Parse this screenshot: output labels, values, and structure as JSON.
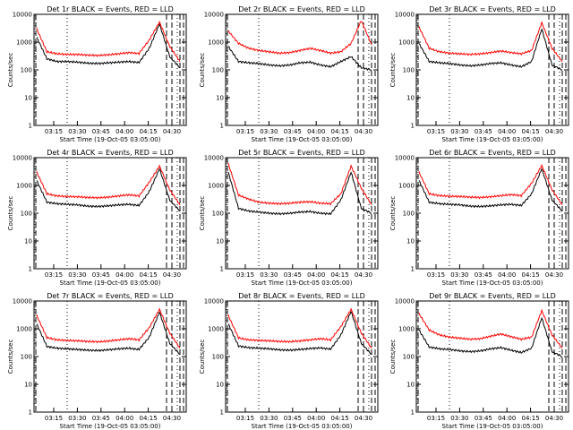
{
  "figure": {
    "x_tick_labels": [
      "03:15",
      "03:30",
      "03:45",
      "04:00",
      "04:15",
      "04:30"
    ],
    "y_tick_labels": [
      "1",
      "10",
      "100",
      "1000",
      "10000"
    ]
  },
  "chart_data": [
    {
      "type": "line",
      "title": "Det 1r BLACK = Events, RED = LLD",
      "xlabel": "Start Time (19-Oct-05 03:05:00)",
      "ylabel": "Counts/sec",
      "y_scale": "log",
      "ylim": [
        1,
        10000
      ],
      "x_ticks": [
        "03:15",
        "03:30",
        "03:45",
        "04:00",
        "04:15",
        "04:30"
      ],
      "series": [
        {
          "name": "Events",
          "color": "#000000",
          "values": [
            1500,
            250,
            200,
            200,
            190,
            175,
            170,
            180,
            190,
            200,
            185,
            600,
            4500,
            300,
            120
          ]
        },
        {
          "name": "LLD",
          "color": "#ff0000",
          "values": [
            3000,
            450,
            380,
            360,
            360,
            340,
            330,
            350,
            380,
            420,
            390,
            1200,
            5200,
            700,
            200
          ]
        }
      ]
    },
    {
      "type": "line",
      "title": "Det 2r BLACK = Events, RED = LLD",
      "xlabel": "Start Time (19-Oct-05 03:05:00)",
      "ylabel": "Counts/sec",
      "y_scale": "log",
      "ylim": [
        1,
        10000
      ],
      "x_ticks": [
        "03:15",
        "03:30",
        "03:45",
        "04:00",
        "04:15",
        "04:30"
      ],
      "series": [
        {
          "name": "Events",
          "color": "#000000",
          "values": [
            700,
            200,
            180,
            170,
            150,
            140,
            150,
            180,
            190,
            150,
            130,
            200,
            300,
            120,
            100
          ]
        },
        {
          "name": "LLD",
          "color": "#ff0000",
          "values": [
            2500,
            900,
            600,
            500,
            450,
            400,
            420,
            500,
            600,
            500,
            400,
            450,
            900,
            6000,
            800
          ]
        }
      ]
    },
    {
      "type": "line",
      "title": "Det 3r BLACK = Events, RED = LLD",
      "xlabel": "Start Time (19-Oct-05 03:05:00)",
      "ylabel": "Counts/sec",
      "y_scale": "log",
      "ylim": [
        1,
        10000
      ],
      "x_ticks": [
        "03:15",
        "03:30",
        "03:45",
        "04:00",
        "04:15",
        "04:30"
      ],
      "series": [
        {
          "name": "Events",
          "color": "#000000",
          "values": [
            900,
            200,
            180,
            170,
            150,
            140,
            150,
            170,
            180,
            150,
            130,
            200,
            3000,
            150,
            100
          ]
        },
        {
          "name": "LLD",
          "color": "#ff0000",
          "values": [
            3500,
            600,
            450,
            400,
            380,
            360,
            380,
            420,
            480,
            420,
            380,
            500,
            5000,
            600,
            200
          ]
        }
      ]
    },
    {
      "type": "line",
      "title": "Det 4r BLACK = Events, RED = LLD",
      "xlabel": "Start Time (19-Oct-05 03:05:00)",
      "ylabel": "Counts/sec",
      "y_scale": "log",
      "ylim": [
        1,
        10000
      ],
      "x_ticks": [
        "03:15",
        "03:30",
        "03:45",
        "04:00",
        "04:15",
        "04:30"
      ],
      "series": [
        {
          "name": "Events",
          "color": "#000000",
          "values": [
            1500,
            250,
            220,
            210,
            200,
            180,
            175,
            185,
            200,
            210,
            190,
            600,
            4000,
            300,
            120
          ]
        },
        {
          "name": "LLD",
          "color": "#ff0000",
          "values": [
            3000,
            500,
            420,
            400,
            390,
            370,
            360,
            380,
            420,
            460,
            420,
            1300,
            5000,
            700,
            200
          ]
        }
      ]
    },
    {
      "type": "line",
      "title": "Det 5r BLACK = Events, RED = LLD",
      "xlabel": "Start Time (19-Oct-05 03:05:00)",
      "ylabel": "Counts/sec",
      "y_scale": "log",
      "ylim": [
        1,
        10000
      ],
      "x_ticks": [
        "03:15",
        "03:30",
        "03:45",
        "04:00",
        "04:15",
        "04:30"
      ],
      "series": [
        {
          "name": "Events",
          "color": "#000000",
          "values": [
            3000,
            150,
            120,
            110,
            100,
            95,
            100,
            110,
            115,
            100,
            95,
            300,
            3000,
            150,
            100
          ]
        },
        {
          "name": "LLD",
          "color": "#ff0000",
          "values": [
            6000,
            450,
            320,
            250,
            230,
            220,
            230,
            250,
            260,
            230,
            220,
            500,
            5000,
            800,
            200
          ]
        }
      ]
    },
    {
      "type": "line",
      "title": "Det 6r BLACK = Events, RED = LLD",
      "xlabel": "Start Time (19-Oct-05 03:05:00)",
      "ylabel": "Counts/sec",
      "y_scale": "log",
      "ylim": [
        1,
        10000
      ],
      "x_ticks": [
        "03:15",
        "03:30",
        "03:45",
        "04:00",
        "04:15",
        "04:30"
      ],
      "series": [
        {
          "name": "Events",
          "color": "#000000",
          "values": [
            1500,
            250,
            220,
            210,
            200,
            180,
            175,
            185,
            200,
            210,
            190,
            500,
            4000,
            300,
            120
          ]
        },
        {
          "name": "LLD",
          "color": "#ff0000",
          "values": [
            3000,
            500,
            430,
            410,
            400,
            380,
            370,
            390,
            430,
            470,
            430,
            1200,
            5200,
            700,
            200
          ]
        }
      ]
    },
    {
      "type": "line",
      "title": "Det 7r BLACK = Events, RED = LLD",
      "xlabel": "Start Time (19-Oct-05 03:05:00)",
      "ylabel": "Counts/sec",
      "y_scale": "log",
      "ylim": [
        1,
        10000
      ],
      "x_ticks": [
        "03:15",
        "03:30",
        "03:45",
        "04:00",
        "04:15",
        "04:30"
      ],
      "series": [
        {
          "name": "Events",
          "color": "#000000",
          "values": [
            1500,
            230,
            200,
            190,
            180,
            170,
            165,
            175,
            190,
            200,
            180,
            500,
            4000,
            300,
            120
          ]
        },
        {
          "name": "LLD",
          "color": "#ff0000",
          "values": [
            3000,
            480,
            400,
            380,
            370,
            350,
            340,
            360,
            400,
            440,
            400,
            1100,
            5000,
            700,
            200
          ]
        }
      ]
    },
    {
      "type": "line",
      "title": "Det 8r BLACK = Events, RED = LLD",
      "xlabel": "Start Time (19-Oct-05 03:05:00)",
      "ylabel": "Counts/sec",
      "y_scale": "log",
      "ylim": [
        1,
        10000
      ],
      "x_ticks": [
        "03:15",
        "03:30",
        "03:45",
        "04:00",
        "04:15",
        "04:30"
      ],
      "series": [
        {
          "name": "Events",
          "color": "#000000",
          "values": [
            1500,
            240,
            210,
            200,
            190,
            175,
            170,
            180,
            195,
            205,
            185,
            600,
            4200,
            300,
            120
          ]
        },
        {
          "name": "LLD",
          "color": "#ff0000",
          "values": [
            3000,
            470,
            400,
            380,
            370,
            350,
            345,
            365,
            400,
            440,
            400,
            1200,
            5000,
            700,
            200
          ]
        }
      ]
    },
    {
      "type": "line",
      "title": "Det 9r BLACK = Events, RED = LLD",
      "xlabel": "Start Time (19-Oct-05 03:05:00)",
      "ylabel": "Counts/sec",
      "y_scale": "log",
      "ylim": [
        1,
        10000
      ],
      "x_ticks": [
        "03:15",
        "03:30",
        "03:45",
        "04:00",
        "04:15",
        "04:30"
      ],
      "series": [
        {
          "name": "Events",
          "color": "#000000",
          "values": [
            900,
            220,
            190,
            180,
            160,
            150,
            160,
            190,
            210,
            170,
            140,
            200,
            2500,
            150,
            100
          ]
        },
        {
          "name": "LLD",
          "color": "#ff0000",
          "values": [
            3500,
            900,
            600,
            500,
            460,
            420,
            440,
            540,
            650,
            520,
            420,
            500,
            4500,
            600,
            200
          ]
        }
      ]
    }
  ]
}
